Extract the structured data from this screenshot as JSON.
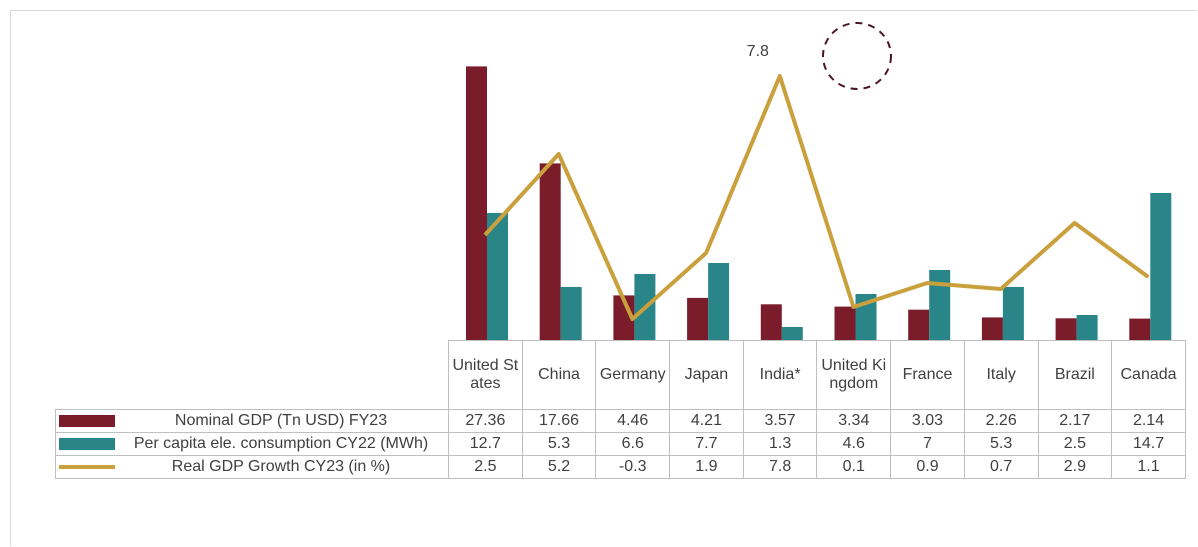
{
  "chart_data": {
    "type": "bar",
    "categories": [
      "United States",
      "China",
      "Germany",
      "Japan",
      "India*",
      "United Kingdom",
      "France",
      "Italy",
      "Brazil",
      "Canada"
    ],
    "series": [
      {
        "name": "Nominal GDP (Tn USD) FY23",
        "color": "#7b1c2a",
        "values": [
          27.36,
          17.66,
          4.46,
          4.21,
          3.57,
          3.34,
          3.03,
          2.26,
          2.17,
          2.14
        ]
      },
      {
        "name": "Per capita ele. consumption CY22 (MWh)",
        "color": "#2a8589",
        "values": [
          12.7,
          5.3,
          6.6,
          7.7,
          1.3,
          4.6,
          7,
          5.3,
          2.5,
          14.7
        ]
      },
      {
        "name": "Real GDP Growth CY23 (in %)",
        "color": "#c9a03c",
        "type": "line",
        "axis": "y2",
        "values": [
          2.5,
          5.2,
          -0.3,
          1.9,
          7.8,
          0.1,
          0.9,
          0.7,
          2.9,
          1.1
        ]
      }
    ],
    "ylim": [
      0,
      30
    ],
    "y2lim": [
      -1,
      9
    ],
    "annotated_point": 4
  }
}
